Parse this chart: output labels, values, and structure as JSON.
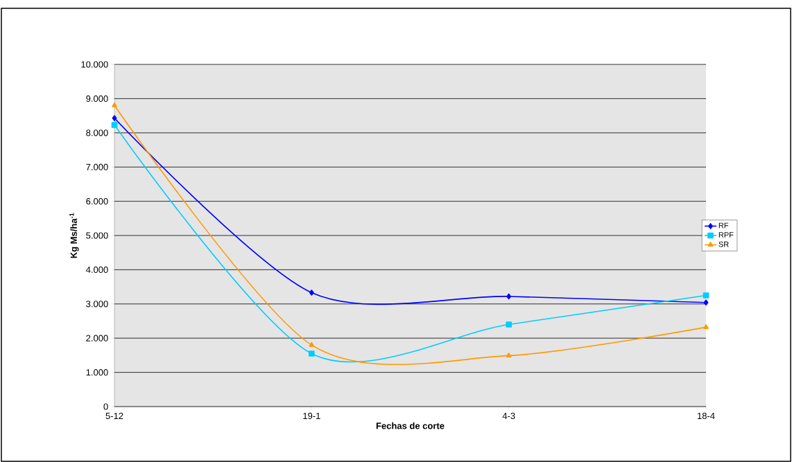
{
  "chart_data": {
    "type": "line",
    "xlabel": "Fechas de corte",
    "ylabel": "Kg Ms/ha$^{-1}$",
    "categories": [
      "5-12",
      "19-1",
      "4-3",
      "18-4"
    ],
    "series": [
      {
        "name": "RF",
        "color": "#0000ff",
        "marker": "diamond",
        "values": [
          8430,
          3330,
          3220,
          3040
        ]
      },
      {
        "name": "RPF",
        "color": "#00ccff",
        "marker": "square",
        "values": [
          8230,
          1550,
          2400,
          3250
        ]
      },
      {
        "name": "SR",
        "color": "#ff9900",
        "marker": "triangle",
        "values": [
          8800,
          1800,
          1490,
          2320
        ]
      }
    ],
    "ylim": [
      0,
      10000
    ],
    "yticks": [
      0,
      {
        "value": 1000,
        "label": "1.000"
      },
      {
        "value": 2000,
        "label": "2.000"
      },
      {
        "value": 3000,
        "label": "3.000"
      },
      {
        "value": 4000,
        "label": "4.000"
      },
      {
        "value": 5000,
        "label": "5.000"
      },
      {
        "value": 6000,
        "label": "6.000"
      },
      {
        "value": 7000,
        "label": "7.000"
      },
      {
        "value": 8000,
        "label": "8.000"
      },
      {
        "value": 9000,
        "label": "9.000"
      },
      {
        "value": 10000,
        "label": "10.000"
      }
    ],
    "grid": "y",
    "legend": "right",
    "line_style": "solid"
  }
}
